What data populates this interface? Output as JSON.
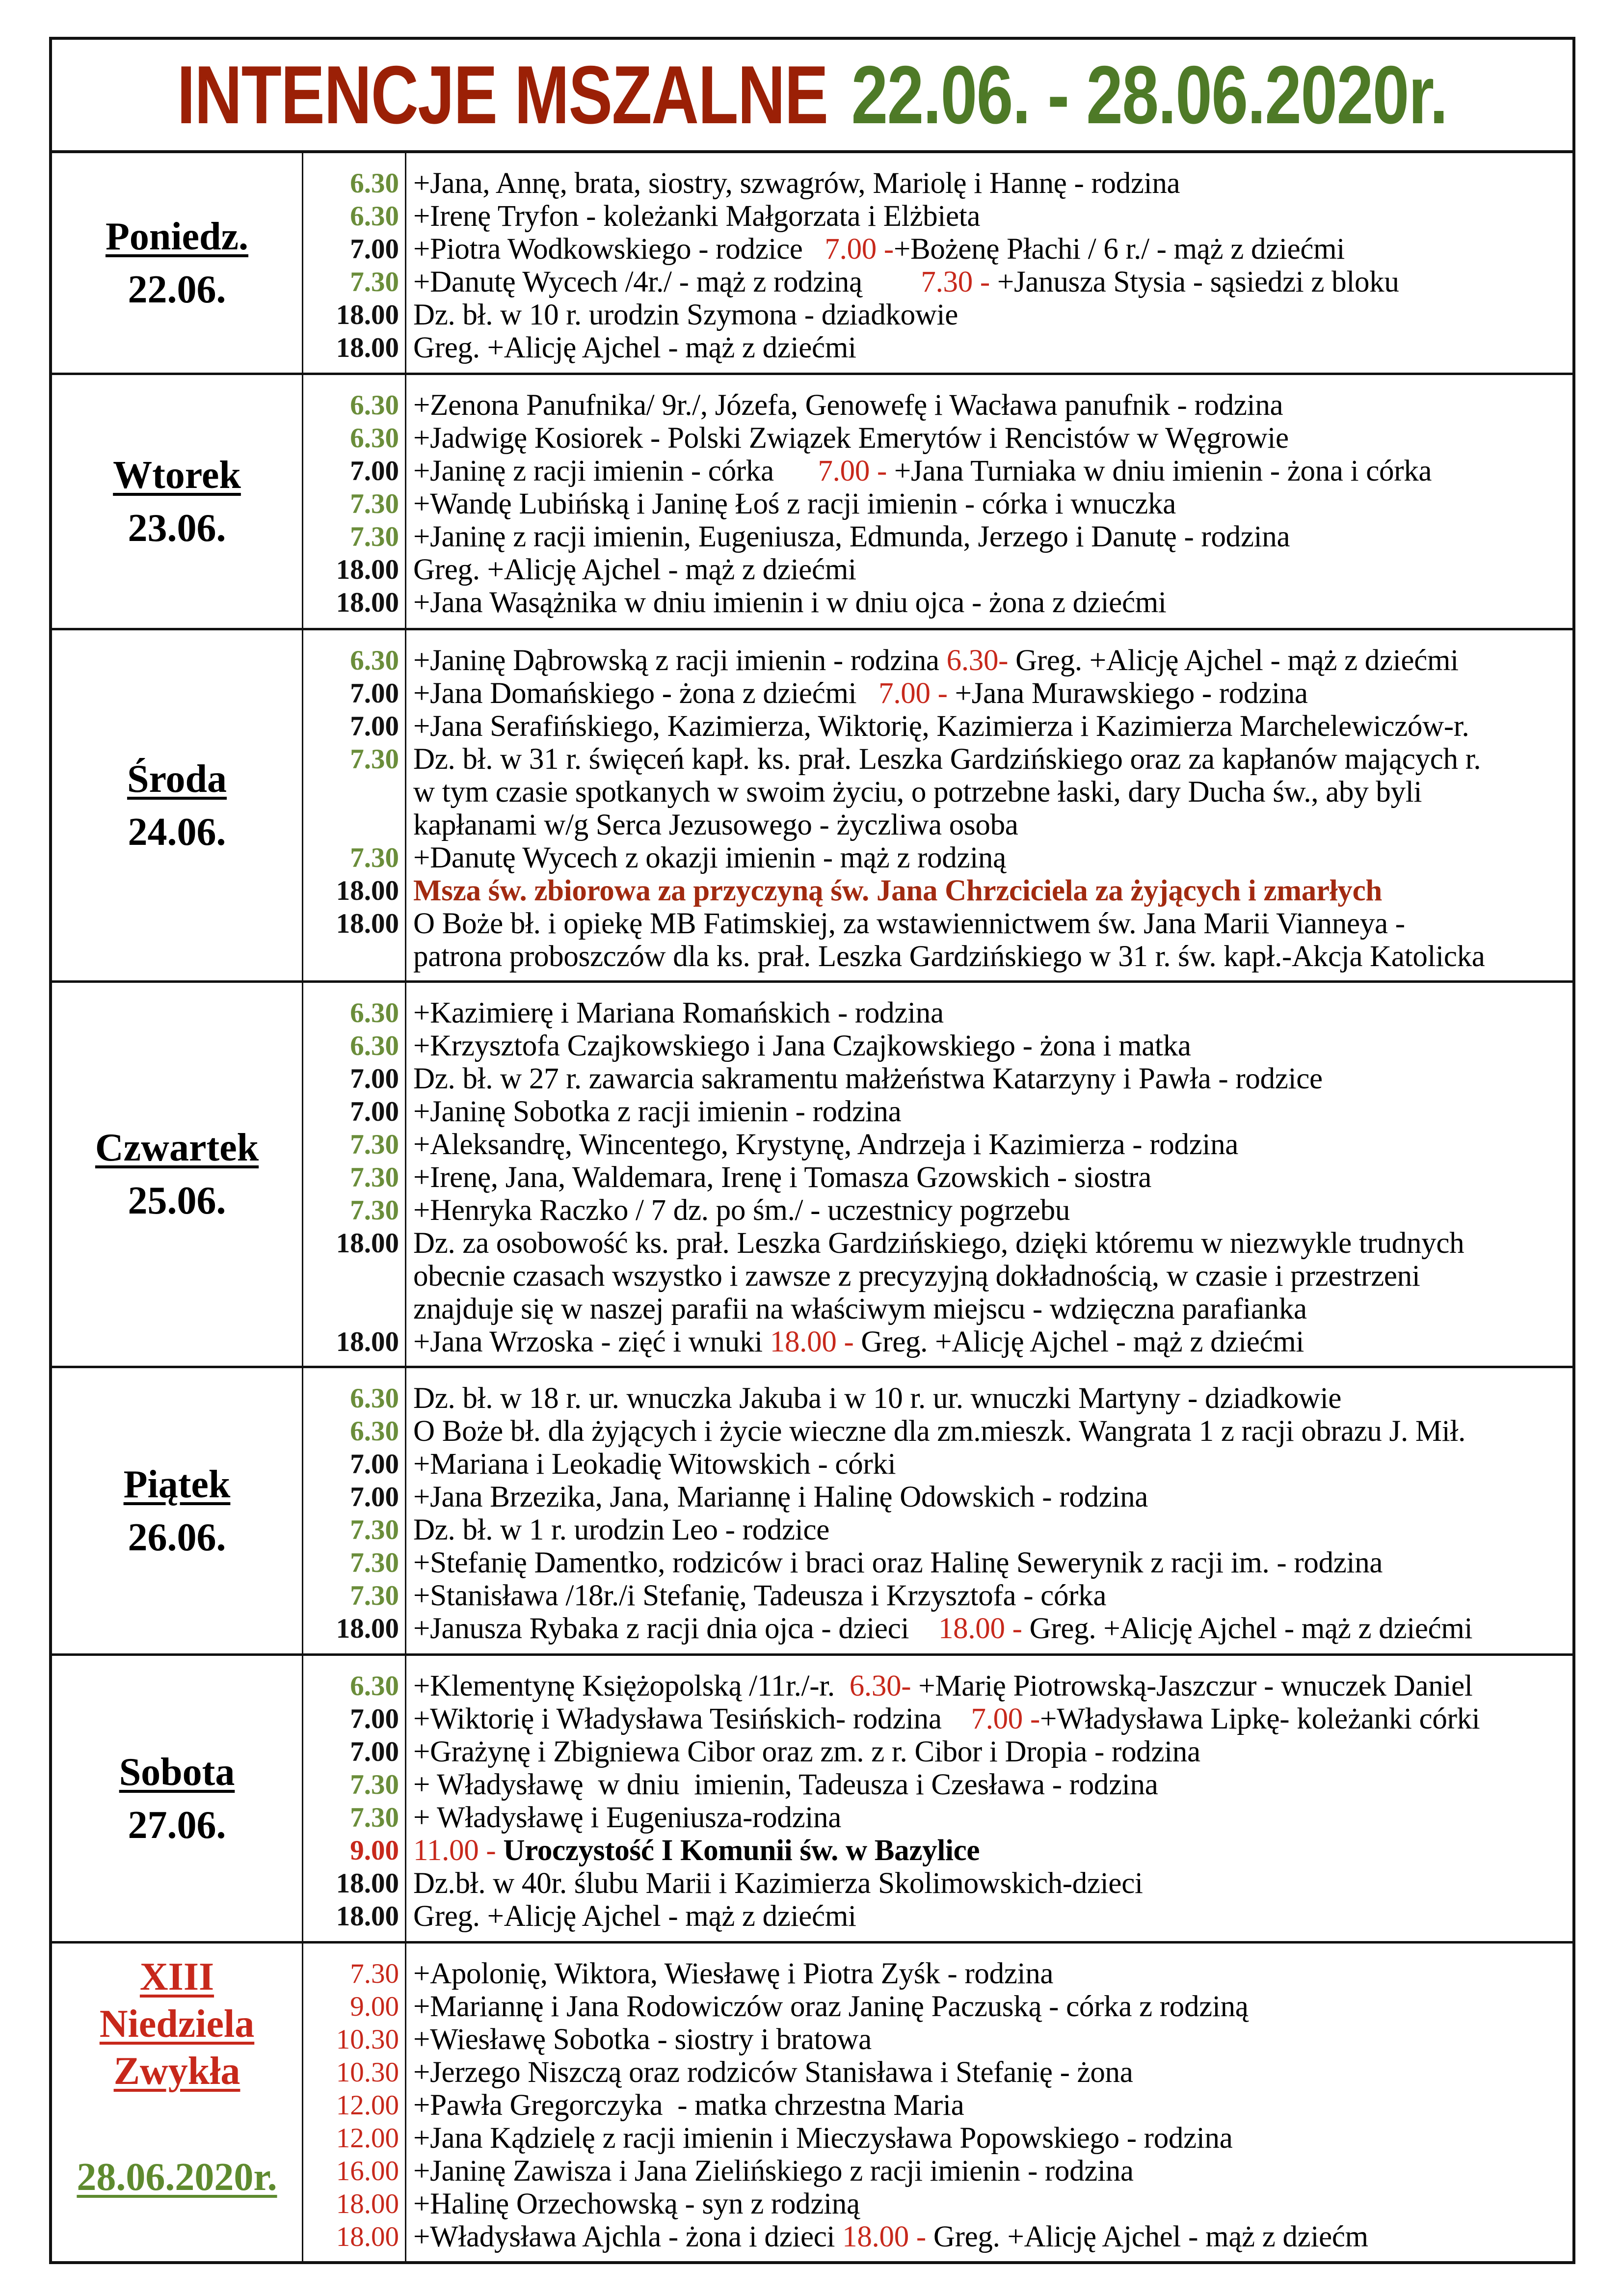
{
  "header": {
    "title": "INTENCJE MSZALNE",
    "date_range": "22.06. - 28.06.2020r."
  },
  "colors": {
    "title_red": "#9b2006",
    "title_green": "#4e7a27",
    "time_green": "#6a8d3a",
    "accent_red": "#c7281b"
  },
  "days": [
    {
      "name": "Poniedz.",
      "date": "22.06.",
      "entries": [
        {
          "time": "6.30",
          "tc": "g",
          "parts": [
            {
              "t": "+Jana, Annę, brata, siostry, szwagrów, Mariolę i Hannę - rodzina"
            }
          ]
        },
        {
          "time": "6.30",
          "tc": "g",
          "parts": [
            {
              "t": "+Irenę Tryfon - koleżanki Małgorzata i Elżbieta"
            }
          ]
        },
        {
          "time": "7.00",
          "tc": "k",
          "parts": [
            {
              "t": "+Piotra Wodkowskiego - rodzice   "
            },
            {
              "t": "7.00 -",
              "c": "r"
            },
            {
              "t": "+Bożenę Płachi / 6 r./ - mąż z dziećmi"
            }
          ]
        },
        {
          "time": "7.30",
          "tc": "g",
          "parts": [
            {
              "t": "+Danutę Wycech /4r./ - mąż z rodziną        "
            },
            {
              "t": "7.30 -",
              "c": "r"
            },
            {
              "t": " +Janusza Stysia - sąsiedzi z bloku"
            }
          ]
        },
        {
          "time": "18.00",
          "tc": "k",
          "parts": [
            {
              "t": "Dz. bł. w 10 r. urodzin Szymona - dziadkowie"
            }
          ]
        },
        {
          "time": "18.00",
          "tc": "k",
          "parts": [
            {
              "t": "Greg. +Alicję Ajchel - mąż z dziećmi"
            }
          ]
        }
      ]
    },
    {
      "name": "Wtorek",
      "date": "23.06.",
      "entries": [
        {
          "time": "6.30",
          "tc": "g",
          "parts": [
            {
              "t": "+Zenona Panufnika/ 9r./, Józefa, Genowefę i Wacława panufnik - rodzina"
            }
          ]
        },
        {
          "time": "6.30",
          "tc": "g",
          "parts": [
            {
              "t": "+Jadwigę Kosiorek - Polski Związek Emerytów i Rencistów w Węgrowie"
            }
          ]
        },
        {
          "time": "7.00",
          "tc": "k",
          "parts": [
            {
              "t": "+Janinę z racji imienin - córka      "
            },
            {
              "t": "7.00 -",
              "c": "r"
            },
            {
              "t": " +Jana Turniaka w dniu imienin - żona i córka"
            }
          ]
        },
        {
          "time": "7.30",
          "tc": "g",
          "parts": [
            {
              "t": "+Wandę Lubińską i Janinę Łoś z racji imienin - córka i wnuczka"
            }
          ]
        },
        {
          "time": "7.30",
          "tc": "g",
          "parts": [
            {
              "t": "+Janinę z racji imienin, Eugeniusza, Edmunda, Jerzego i Danutę - rodzina"
            }
          ]
        },
        {
          "time": "18.00",
          "tc": "k",
          "parts": [
            {
              "t": "Greg. +Alicję Ajchel - mąż z dziećmi"
            }
          ]
        },
        {
          "time": "18.00",
          "tc": "k",
          "parts": [
            {
              "t": "+Jana Wasążnika w dniu imienin i w dniu ojca - żona z dziećmi"
            }
          ]
        }
      ]
    },
    {
      "name": "Środa",
      "date": "24.06.",
      "entries": [
        {
          "time": "6.30",
          "tc": "g",
          "parts": [
            {
              "t": "+Janinę Dąbrowską z racji imienin - rodzina "
            },
            {
              "t": "6.30-",
              "c": "r"
            },
            {
              "t": " Greg. +Alicję Ajchel - mąż z dziećmi"
            }
          ]
        },
        {
          "time": "7.00",
          "tc": "k",
          "parts": [
            {
              "t": "+Jana Domańskiego - żona z dziećmi   "
            },
            {
              "t": "7.00 -",
              "c": "r"
            },
            {
              "t": " +Jana Murawskiego - rodzina"
            }
          ]
        },
        {
          "time": "7.00",
          "tc": "k",
          "parts": [
            {
              "t": "+Jana Serafińskiego, Kazimierza, Wiktorię, Kazimierza i Kazimierza Marchelewiczów-r."
            }
          ]
        },
        {
          "time": "7.30",
          "tc": "g",
          "parts": [
            {
              "t": "Dz. bł. w 31 r. święceń kapł. ks. prał. Leszka Gardzińskiego oraz za kapłanów mających r."
            }
          ]
        },
        {
          "time": "",
          "tc": "k",
          "parts": [
            {
              "t": "w tym czasie spotkanych w swoim życiu, o potrzebne łaski, dary Ducha św., aby byli"
            }
          ]
        },
        {
          "time": "",
          "tc": "k",
          "parts": [
            {
              "t": "kapłanami w/g Serca Jezusowego - życzliwa osoba"
            }
          ]
        },
        {
          "time": "7.30",
          "tc": "g",
          "parts": [
            {
              "t": "+Danutę Wycech z okazji imienin - mąż z rodziną"
            }
          ]
        },
        {
          "time": "18.00",
          "tc": "k",
          "parts": [
            {
              "t": "Msza św. zbiorowa za przyczyną św. Jana Chrzciciela za żyjących i zmarłych",
              "c": "m"
            }
          ]
        },
        {
          "time": "18.00",
          "tc": "k",
          "parts": [
            {
              "t": "O Boże bł. i opiekę MB Fatimskiej, za wstawiennictwem św. Jana Marii Vianneya -"
            }
          ]
        },
        {
          "time": "",
          "tc": "k",
          "parts": [
            {
              "t": "patrona proboszczów dla ks. prał. Leszka Gardzińskiego w 31 r. św. kapł.-Akcja Katolicka"
            }
          ]
        }
      ]
    },
    {
      "name": "Czwartek",
      "date": "25.06.",
      "entries": [
        {
          "time": "6.30",
          "tc": "g",
          "parts": [
            {
              "t": "+Kazimierę i Mariana Romańskich - rodzina"
            }
          ]
        },
        {
          "time": "6.30",
          "tc": "g",
          "parts": [
            {
              "t": "+Krzysztofa Czajkowskiego i Jana Czajkowskiego - żona i matka"
            }
          ]
        },
        {
          "time": "7.00",
          "tc": "k",
          "parts": [
            {
              "t": "Dz. bł. w 27 r. zawarcia sakramentu małżeństwa Katarzyny i Pawła - rodzice"
            }
          ]
        },
        {
          "time": "7.00",
          "tc": "k",
          "parts": [
            {
              "t": "+Janinę Sobotka z racji imienin - rodzina"
            }
          ]
        },
        {
          "time": "7.30",
          "tc": "g",
          "parts": [
            {
              "t": "+Aleksandrę, Wincentego, Krystynę, Andrzeja i Kazimierza - rodzina"
            }
          ]
        },
        {
          "time": "7.30",
          "tc": "g",
          "parts": [
            {
              "t": "+Irenę, Jana, Waldemara, Irenę i Tomasza Gzowskich - siostra"
            }
          ]
        },
        {
          "time": "7.30",
          "tc": "g",
          "parts": [
            {
              "t": "+Henryka Raczko / 7 dz. po śm./ - uczestnicy pogrzebu"
            }
          ]
        },
        {
          "time": "18.00",
          "tc": "k",
          "parts": [
            {
              "t": "Dz. za osobowość ks. prał. Leszka Gardzińskiego, dzięki któremu w niezwykle trudnych"
            }
          ]
        },
        {
          "time": "",
          "tc": "k",
          "parts": [
            {
              "t": "obecnie czasach wszystko i zawsze z precyzyjną dokładnością, w czasie i przestrzeni"
            }
          ]
        },
        {
          "time": "",
          "tc": "k",
          "parts": [
            {
              "t": "znajduje się w naszej parafii na właściwym miejscu - wdzięczna parafianka"
            }
          ]
        },
        {
          "time": "18.00",
          "tc": "k",
          "parts": [
            {
              "t": "+Jana Wrzoska - zięć i wnuki "
            },
            {
              "t": "18.00 -",
              "c": "r"
            },
            {
              "t": " Greg. +Alicję Ajchel - mąż z dziećmi"
            }
          ]
        }
      ]
    },
    {
      "name": "Piątek",
      "date": "26.06.",
      "entries": [
        {
          "time": "6.30",
          "tc": "g",
          "parts": [
            {
              "t": "Dz. bł. w 18 r. ur. wnuczka Jakuba i w 10 r. ur. wnuczki Martyny - dziadkowie"
            }
          ]
        },
        {
          "time": "6.30",
          "tc": "g",
          "parts": [
            {
              "t": "O Boże bł. dla żyjących i życie wieczne dla zm.mieszk. Wangrata 1 z racji obrazu J. Mił."
            }
          ]
        },
        {
          "time": "7.00",
          "tc": "k",
          "parts": [
            {
              "t": "+Mariana i Leokadię Witowskich - córki"
            }
          ]
        },
        {
          "time": "7.00",
          "tc": "k",
          "parts": [
            {
              "t": "+Jana Brzezika, Jana, Mariannę i Halinę Odowskich - rodzina"
            }
          ]
        },
        {
          "time": "7.30",
          "tc": "g",
          "parts": [
            {
              "t": "Dz. bł. w 1 r. urodzin Leo - rodzice"
            }
          ]
        },
        {
          "time": "7.30",
          "tc": "g",
          "parts": [
            {
              "t": "+Stefanię Damentko, rodziców i braci oraz Halinę Sewerynik z racji im. - rodzina"
            }
          ]
        },
        {
          "time": "7.30",
          "tc": "g",
          "parts": [
            {
              "t": "+Stanisława /18r./i Stefanię, Tadeusza i Krzysztofa - córka"
            }
          ]
        },
        {
          "time": "18.00",
          "tc": "k",
          "parts": [
            {
              "t": "+Janusza Rybaka z racji dnia ojca - dzieci    "
            },
            {
              "t": "18.00 -",
              "c": "r"
            },
            {
              "t": " Greg. +Alicję Ajchel - mąż z dziećmi"
            }
          ]
        }
      ]
    },
    {
      "name": "Sobota",
      "date": "27.06.",
      "entries": [
        {
          "time": "6.30",
          "tc": "g",
          "parts": [
            {
              "t": "+Klementynę Księżopolską /11r./-r.  "
            },
            {
              "t": "6.30-",
              "c": "r"
            },
            {
              "t": " +Marię Piotrowską-Jaszczur - wnuczek Daniel"
            }
          ]
        },
        {
          "time": "7.00",
          "tc": "k",
          "parts": [
            {
              "t": "+Wiktorię i Władysława Tesińskich- rodzina    "
            },
            {
              "t": "7.00 -",
              "c": "r"
            },
            {
              "t": "+Władysława Lipkę- koleżanki córki"
            }
          ]
        },
        {
          "time": "7.00",
          "tc": "k",
          "parts": [
            {
              "t": "+Grażynę i Zbigniewa Cibor oraz zm. z r. Cibor i Dropia - rodzina"
            }
          ]
        },
        {
          "time": "7.30",
          "tc": "g",
          "parts": [
            {
              "t": "+ Władysławę  w dniu  imienin, Tadeusza i Czesława - rodzina"
            }
          ]
        },
        {
          "time": "7.30",
          "tc": "g",
          "parts": [
            {
              "t": "+ Władysławę i Eugeniusza-rodzina"
            }
          ]
        },
        {
          "time": "9.00",
          "tc": "r",
          "parts": [
            {
              "t": "11.00 -",
              "c": "r"
            },
            {
              "t": " Uroczystość I Komunii św. w Bazylice",
              "c": "b"
            }
          ]
        },
        {
          "time": "18.00",
          "tc": "k",
          "parts": [
            {
              "t": "Dz.bł. w 40r. ślubu Marii i Kazimierza Skolimowskich-dzieci"
            }
          ]
        },
        {
          "time": "18.00",
          "tc": "k",
          "parts": [
            {
              "t": "Greg. +Alicję Ajchel - mąż z dziećmi"
            }
          ]
        }
      ]
    }
  ],
  "sunday": {
    "label_lines": [
      "XIII",
      "Niedziela",
      "Zwykła"
    ],
    "date": "28.06.2020r.",
    "entries": [
      {
        "time": "7.30",
        "tc": "r",
        "parts": [
          {
            "t": "+Apolonię, Wiktora, Wiesławę i Piotra Zyśk - rodzina"
          }
        ]
      },
      {
        "time": "9.00",
        "tc": "r",
        "parts": [
          {
            "t": "+Mariannę i Jana Rodowiczów oraz Janinę Paczuską - córka z rodziną"
          }
        ]
      },
      {
        "time": "10.30",
        "tc": "r",
        "parts": [
          {
            "t": "+Wiesławę Sobotka - siostry i bratowa"
          }
        ]
      },
      {
        "time": "10.30",
        "tc": "r",
        "parts": [
          {
            "t": "+Jerzego Niszczą oraz rodziców Stanisława i Stefanię - żona"
          }
        ]
      },
      {
        "time": "12.00",
        "tc": "r",
        "parts": [
          {
            "t": "+Pawła Gregorczyka  - matka chrzestna Maria"
          }
        ]
      },
      {
        "time": "12.00",
        "tc": "r",
        "parts": [
          {
            "t": "+Jana Kądzielę z racji imienin i Mieczysława Popowskiego - rodzina"
          }
        ]
      },
      {
        "time": "16.00",
        "tc": "r",
        "parts": [
          {
            "t": "+Janinę Zawisza i Jana Zielińskiego z racji imienin - rodzina"
          }
        ]
      },
      {
        "time": "18.00",
        "tc": "r",
        "parts": [
          {
            "t": "+Halinę Orzechowską - syn z rodziną"
          }
        ]
      },
      {
        "time": "18.00",
        "tc": "r",
        "parts": [
          {
            "t": "+Władysława Ajchla - żona i dzieci "
          },
          {
            "t": "18.00 -",
            "c": "r"
          },
          {
            "t": " Greg. +Alicję Ajchel - mąż z dziećm"
          }
        ]
      }
    ]
  }
}
